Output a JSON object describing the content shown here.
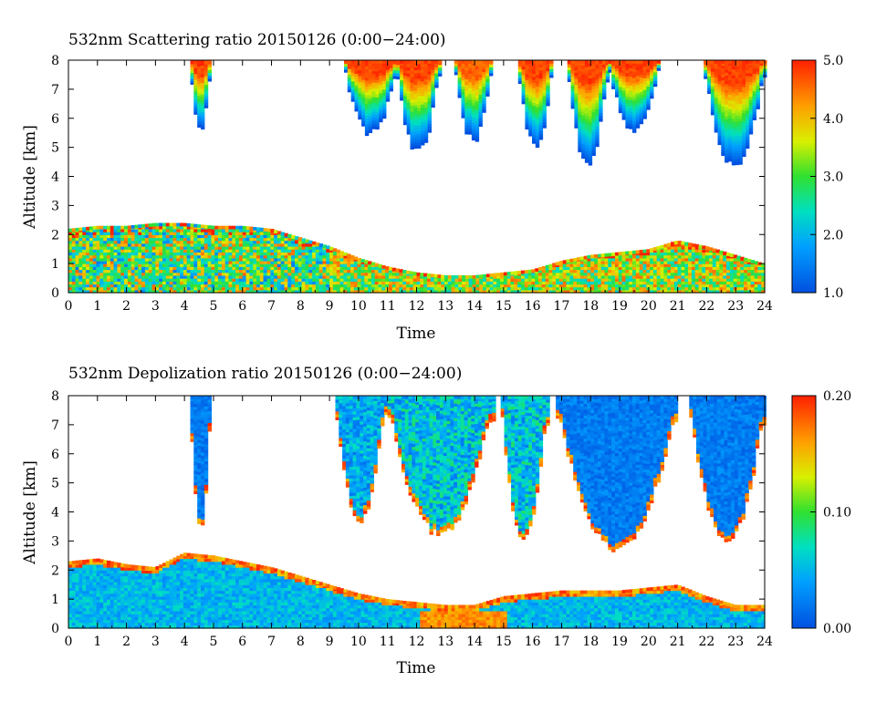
{
  "chart_data": [
    {
      "type": "heatmap",
      "title": "532nm Scattering ratio  20150126 (0:00−24:00)",
      "xlabel": "Time",
      "ylabel": "Altitude [km]",
      "xlim": [
        0,
        24
      ],
      "ylim": [
        0,
        8
      ],
      "x_ticks": [
        "0",
        "1",
        "2",
        "3",
        "4",
        "5",
        "6",
        "7",
        "8",
        "9",
        "10",
        "11",
        "12",
        "13",
        "14",
        "15",
        "16",
        "17",
        "18",
        "19",
        "20",
        "21",
        "22",
        "23",
        "24"
      ],
      "y_ticks": [
        "0",
        "1",
        "2",
        "3",
        "4",
        "5",
        "6",
        "7",
        "8"
      ],
      "colorbar": {
        "min": 1.0,
        "max": 5.0,
        "ticks": [
          "1.0",
          "2.0",
          "3.0",
          "4.0",
          "5.0"
        ]
      },
      "features": {
        "boundary_layer": {
          "x": [
            0,
            1,
            2,
            3,
            4,
            5,
            6,
            7,
            8,
            9,
            10,
            11,
            12,
            13,
            14,
            15,
            16,
            17,
            18,
            19,
            20,
            21,
            22,
            23,
            24
          ],
          "top_km": [
            2.2,
            2.3,
            2.3,
            2.4,
            2.4,
            2.3,
            2.3,
            2.2,
            1.9,
            1.6,
            1.2,
            0.9,
            0.7,
            0.6,
            0.6,
            0.7,
            0.8,
            1.1,
            1.3,
            1.4,
            1.5,
            1.8,
            1.6,
            1.3,
            1.0
          ],
          "mean_ratio": 4.0
        },
        "high_clouds": [
          {
            "start": 4.2,
            "end": 4.9,
            "base_km": 5.7,
            "peak": 5.0
          },
          {
            "start": 9.5,
            "end": 11.3,
            "base_km": 5.6,
            "peak": 5.0
          },
          {
            "start": 11.3,
            "end": 12.8,
            "base_km": 5.0,
            "peak": 5.0
          },
          {
            "start": 13.3,
            "end": 14.6,
            "base_km": 5.4,
            "peak": 4.8
          },
          {
            "start": 15.5,
            "end": 16.7,
            "base_km": 5.2,
            "peak": 5.0
          },
          {
            "start": 17.2,
            "end": 18.6,
            "base_km": 4.6,
            "peak": 5.0
          },
          {
            "start": 18.6,
            "end": 20.4,
            "base_km": 5.8,
            "peak": 5.0
          },
          {
            "start": 21.9,
            "end": 24.0,
            "base_km": 4.5,
            "peak": 5.0
          }
        ]
      }
    },
    {
      "type": "heatmap",
      "title": "532nm Depolization ratio  20150126 (0:00−24:00)",
      "xlabel": "Time",
      "ylabel": "Altitude [km]",
      "xlim": [
        0,
        24
      ],
      "ylim": [
        0,
        8
      ],
      "x_ticks": [
        "0",
        "1",
        "2",
        "3",
        "4",
        "5",
        "6",
        "7",
        "8",
        "9",
        "10",
        "11",
        "12",
        "13",
        "14",
        "15",
        "16",
        "17",
        "18",
        "19",
        "20",
        "21",
        "22",
        "23",
        "24"
      ],
      "y_ticks": [
        "0",
        "1",
        "2",
        "3",
        "4",
        "5",
        "6",
        "7",
        "8"
      ],
      "colorbar": {
        "min": 0.0,
        "max": 0.2,
        "ticks": [
          "0.00",
          "0.10",
          "0.20"
        ]
      },
      "features": {
        "boundary_layer": {
          "x": [
            0,
            1,
            2,
            3,
            4,
            5,
            6,
            7,
            8,
            9,
            10,
            11,
            12,
            13,
            14,
            15,
            16,
            17,
            18,
            19,
            20,
            21,
            22,
            23,
            24
          ],
          "top_km": [
            2.3,
            2.4,
            2.2,
            2.1,
            2.6,
            2.5,
            2.3,
            2.1,
            1.8,
            1.5,
            1.2,
            1.0,
            0.9,
            0.8,
            0.8,
            1.1,
            1.2,
            1.3,
            1.3,
            1.3,
            1.4,
            1.5,
            1.1,
            0.8,
            0.8
          ],
          "mean_ratio": 0.05
        },
        "high_clouds": [
          {
            "start": 4.2,
            "end": 4.9,
            "base_km": 3.6,
            "depol": 0.02
          },
          {
            "start": 9.2,
            "end": 10.9,
            "base_km": 3.8,
            "depol": 0.04
          },
          {
            "start": 11.0,
            "end": 14.6,
            "base_km": 3.4,
            "depol": 0.05
          },
          {
            "start": 14.9,
            "end": 16.5,
            "base_km": 3.2,
            "depol": 0.05
          },
          {
            "start": 16.8,
            "end": 21.0,
            "base_km": 2.9,
            "depol": 0.02
          },
          {
            "start": 21.4,
            "end": 24.0,
            "base_km": 3.1,
            "depol": 0.02
          }
        ]
      }
    }
  ]
}
